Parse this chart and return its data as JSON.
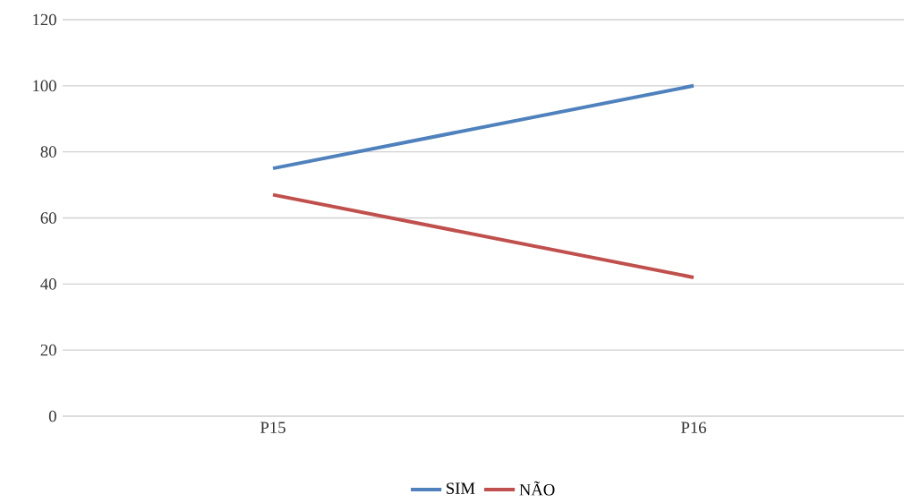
{
  "chart_data": {
    "type": "line",
    "categories": [
      "P15",
      "P16"
    ],
    "series": [
      {
        "name": "SIM",
        "color": "#4f81bd",
        "values": [
          75,
          100
        ]
      },
      {
        "name": "NÃO",
        "color": "#c0504d",
        "values": [
          67,
          42
        ]
      }
    ],
    "ylim": [
      0,
      120
    ],
    "yticks": [
      0,
      20,
      40,
      60,
      80,
      100,
      120
    ],
    "grid": "y",
    "legend": "bottom",
    "marker": "none",
    "line_style": "solid"
  }
}
